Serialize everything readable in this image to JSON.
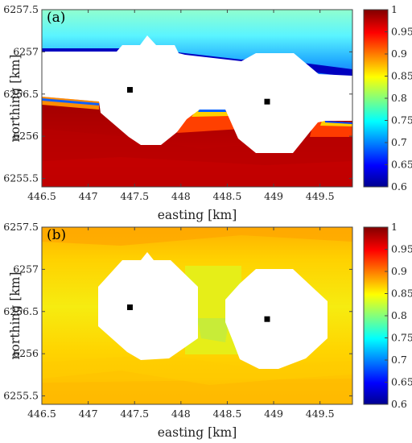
{
  "chart_data": [
    {
      "type": "heatmap",
      "panel_label": "(a)",
      "xlabel": "easting [km]",
      "ylabel": "northing [km]",
      "xlim": [
        446.5,
        449.85
      ],
      "ylim": [
        6255.4,
        6257.5
      ],
      "x_ticks": [
        "446.5",
        "447",
        "447.5",
        "448",
        "448.5",
        "449",
        "449.5"
      ],
      "y_ticks": [
        "6255.5",
        "6256",
        "6256.5",
        "6257",
        "6257.5"
      ],
      "colorbar": {
        "range": [
          0.6,
          1.0
        ],
        "ticks": [
          "0.6",
          "0.65",
          "0.7",
          "0.75",
          "0.8",
          "0.85",
          "0.9",
          "0.95",
          "1"
        ],
        "colormap": "jet"
      },
      "markers": [
        {
          "x": 447.45,
          "y": 6256.55
        },
        {
          "x": 448.93,
          "y": 6256.41
        }
      ],
      "field": "upper band 0.6 near the white region rising to 0.8 at the top edge; lower region about 0.96-1.0"
    },
    {
      "type": "heatmap",
      "panel_label": "(b)",
      "xlabel": "easting [km]",
      "ylabel": "northing [km]",
      "xlim": [
        446.5,
        449.85
      ],
      "ylim": [
        6255.4,
        6257.5
      ],
      "x_ticks": [
        "446.5",
        "447",
        "447.5",
        "448",
        "448.5",
        "449",
        "449.5"
      ],
      "y_ticks": [
        "6255.5",
        "6256",
        "6256.5",
        "6257",
        "6257.5"
      ],
      "colorbar": {
        "range": [
          0.6,
          1.0
        ],
        "ticks": [
          "0.6",
          "0.65",
          "0.7",
          "0.75",
          "0.8",
          "0.85",
          "0.9",
          "0.95",
          "1"
        ],
        "colormap": "jet"
      },
      "markers": [
        {
          "x": 447.45,
          "y": 6256.55
        },
        {
          "x": 448.93,
          "y": 6256.41
        }
      ],
      "field": "mostly 0.86-0.90 (yellow-orange), about 0.84 between the two white regions"
    }
  ]
}
